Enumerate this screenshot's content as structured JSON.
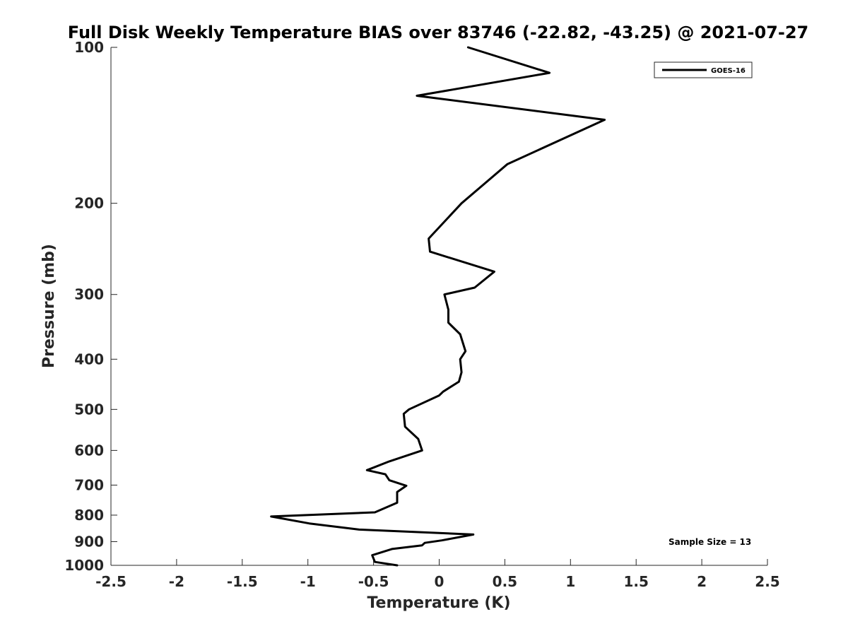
{
  "chart_data": {
    "type": "line",
    "title": "Full Disk Weekly Temperature BIAS over 83746 (-22.82, -43.25) @ 2021-07-27",
    "xlabel": "Temperature (K)",
    "ylabel": "Pressure (mb)",
    "xlim": [
      -2.5,
      2.5
    ],
    "ylim": [
      100,
      1000
    ],
    "y_scale": "log",
    "y_reversed": true,
    "x_ticks": [
      -2.5,
      -2,
      -1.5,
      -1,
      -0.5,
      0,
      0.5,
      1,
      1.5,
      2,
      2.5
    ],
    "x_tick_labels": [
      "-2.5",
      "-2",
      "-1.5",
      "-1",
      "-0.5",
      "0",
      "0.5",
      "1",
      "1.5",
      "2",
      "2.5"
    ],
    "y_ticks": [
      100,
      200,
      300,
      400,
      500,
      600,
      700,
      800,
      900,
      1000
    ],
    "y_tick_labels": [
      "100",
      "200",
      "300",
      "400",
      "500",
      "600",
      "700",
      "800",
      "900",
      "1000"
    ],
    "grid": false,
    "legend_position": "top-right",
    "line_color": "#000000",
    "series": [
      {
        "name": "GOES-16",
        "x": [
          0.22,
          0.84,
          -0.17,
          1.26,
          0.52,
          0.17,
          -0.08,
          -0.07,
          0.42,
          0.27,
          0.04,
          0.07,
          0.07,
          0.16,
          0.2,
          0.16,
          0.17,
          0.15,
          0.03,
          0.0,
          -0.23,
          -0.27,
          -0.26,
          -0.16,
          -0.13,
          -0.38,
          -0.55,
          -0.41,
          -0.38,
          -0.25,
          -0.32,
          -0.32,
          -0.49,
          -1.28,
          -0.99,
          -0.61,
          0.26,
          0.02,
          -0.11,
          -0.13,
          -0.36,
          -0.51,
          -0.49,
          -0.32
        ],
        "y": [
          100,
          112,
          124,
          138,
          168,
          200,
          234,
          248,
          271,
          291,
          300,
          321,
          340,
          358,
          386,
          400,
          424,
          442,
          462,
          470,
          500,
          510,
          540,
          570,
          600,
          630,
          655,
          667,
          685,
          702,
          722,
          757,
          790,
          805,
          830,
          853,
          872,
          895,
          905,
          915,
          930,
          956,
          985,
          1000
        ]
      }
    ],
    "annotations": [
      {
        "text": "Sample Size = 13",
        "position": "bottom-right"
      }
    ]
  }
}
